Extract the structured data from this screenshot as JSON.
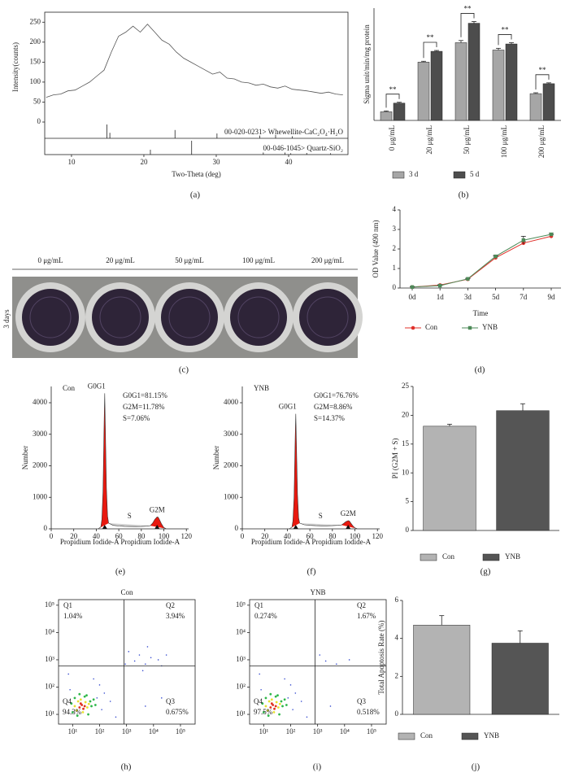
{
  "chart_data": [
    {
      "type": "line",
      "panel": "(a)",
      "ylabel": "Intensity(counts)",
      "xlabel": "Two-Theta (deg)",
      "frame": true,
      "color": "#555555",
      "x": [
        6.5,
        7.5,
        8.5,
        9.5,
        10.5,
        11.5,
        12.5,
        13.5,
        14.5,
        15.5,
        16.5,
        17.5,
        18.5,
        19.5,
        20.5,
        21.5,
        22.5,
        23.5,
        24.5,
        25.5,
        26.5,
        27.5,
        28.5,
        29.5,
        30.5,
        31.5,
        32.5,
        33.5,
        34.5,
        35.5,
        36.5,
        37.5,
        38.5,
        39.5,
        40.5,
        41.5,
        42.5,
        43.5,
        44.5,
        45.5,
        46.5,
        47.5
      ],
      "values": [
        62,
        68,
        70,
        78,
        80,
        90,
        100,
        115,
        130,
        175,
        215,
        225,
        240,
        225,
        245,
        225,
        205,
        195,
        175,
        160,
        150,
        140,
        130,
        120,
        125,
        110,
        108,
        100,
        98,
        92,
        95,
        88,
        85,
        90,
        82,
        80,
        78,
        75,
        72,
        75,
        70,
        68
      ],
      "xlim": [
        6.3,
        48.2
      ],
      "ylim": [
        0,
        275
      ],
      "xticks": [
        10,
        20,
        30,
        40
      ],
      "yticks": [
        0,
        50,
        100,
        150,
        200,
        250
      ],
      "references": [
        {
          "name": "00-020-0231> Whewellite-CaC₂O₄·H₂O",
          "x": [
            14.9,
            15.3,
            24.3,
            30.1,
            36.0,
            38.2,
            40.5
          ],
          "values": [
            100,
            40,
            60,
            35,
            20,
            25,
            15
          ]
        },
        {
          "name": "00-046-1045> Quartz-SiO₂",
          "x": [
            20.9,
            26.6,
            36.5,
            39.5,
            40.3,
            42.5,
            45.8
          ],
          "values": [
            35,
            100,
            15,
            15,
            10,
            12,
            10
          ]
        }
      ]
    },
    {
      "type": "bar",
      "panel": "(b)",
      "ylabel": "Sigma unit/min/mg protein",
      "ylim": [
        0,
        2.6
      ],
      "categories": [
        "0 μg/mL",
        "20 μg/mL",
        "50 μg/mL",
        "100 μg/mL",
        "200 μg/mL"
      ],
      "annotations": [
        "**",
        "**",
        "**",
        "**",
        "**"
      ],
      "series": [
        {
          "name": "3 d",
          "color": "#a6a6a6",
          "values": [
            0.2,
            1.35,
            1.8,
            1.63,
            0.62
          ],
          "errors": [
            0.02,
            0.02,
            0.05,
            0.04,
            0.02
          ]
        },
        {
          "name": "5 d",
          "color": "#4d4d4d",
          "values": [
            0.4,
            1.6,
            2.25,
            1.77,
            0.85
          ],
          "errors": [
            0.02,
            0.02,
            0.04,
            0.03,
            0.02
          ]
        }
      ]
    },
    {
      "type": "line",
      "panel": "(d)",
      "ylabel": "OD Value (490 nm)",
      "xlabel": "Time",
      "categories": [
        "0d",
        "1d",
        "3d",
        "5d",
        "7d",
        "9d"
      ],
      "ylim": [
        0,
        4
      ],
      "yticks": [
        0,
        1,
        2,
        3,
        4
      ],
      "series": [
        {
          "name": "Con",
          "color": "#e0302a",
          "marker": "circle",
          "values": [
            0.05,
            0.15,
            0.45,
            1.55,
            2.3,
            2.65
          ],
          "errors": [
            0.02,
            0.02,
            0.03,
            0.08,
            0.08,
            0.08
          ]
        },
        {
          "name": "YNB",
          "color": "#4d8a58",
          "marker": "square",
          "values": [
            0.05,
            0.12,
            0.47,
            1.62,
            2.45,
            2.75
          ],
          "errors": [
            0.02,
            0.02,
            0.03,
            0.05,
            0.2,
            0.05
          ]
        }
      ]
    },
    {
      "type": "area",
      "panel": "(e)",
      "title": "Con",
      "ylabel": "Number",
      "xlabel": "Propidium Iodide-A Propidium Iodide-A",
      "annotations": [
        "G0G1=81.15%",
        "G2M=11.78%",
        "S=7.06%"
      ],
      "xlim": [
        0,
        122
      ],
      "ylim": [
        0,
        4516
      ],
      "xticks": [
        0,
        20,
        40,
        60,
        80,
        100,
        120
      ],
      "yticks": [
        0,
        1000,
        2000,
        3000,
        4000
      ],
      "series": [
        {
          "name": "G0G1",
          "color": "#e8190f",
          "x": [
            42,
            44,
            45,
            46,
            47,
            47.5,
            48,
            49,
            50,
            51
          ],
          "values": [
            10,
            60,
            300,
            1200,
            3400,
            4300,
            3300,
            1300,
            400,
            180
          ]
        },
        {
          "name": "S",
          "color": "#d0d0d0",
          "x": [
            51,
            55,
            60,
            65,
            70,
            75,
            80,
            85,
            88
          ],
          "values": [
            180,
            110,
            90,
            80,
            75,
            72,
            75,
            85,
            100
          ]
        },
        {
          "name": "G2M",
          "color": "#e8190f",
          "x": [
            88,
            90,
            92,
            94,
            95,
            96,
            98,
            100,
            102
          ],
          "values": [
            100,
            180,
            300,
            380,
            370,
            300,
            150,
            40,
            5
          ]
        }
      ]
    },
    {
      "type": "area",
      "panel": "(f)",
      "title": "YNB",
      "ylabel": "Number",
      "xlabel": "Propidium Iodide-A Propidium Iodide-A",
      "annotations": [
        "G0G1=76.76%",
        "G2M=8.86%",
        "S=14.37%"
      ],
      "xlim": [
        0,
        122
      ],
      "ylim": [
        0,
        4516
      ],
      "xticks": [
        0,
        20,
        40,
        60,
        80,
        100,
        120
      ],
      "yticks": [
        0,
        1000,
        2000,
        3000,
        4000
      ],
      "series": [
        {
          "name": "G0G1",
          "color": "#e8190f",
          "x": [
            42,
            44,
            45,
            46,
            47,
            47.5,
            48,
            49,
            50,
            51
          ],
          "values": [
            10,
            50,
            250,
            1000,
            2900,
            3650,
            2800,
            1100,
            350,
            180
          ]
        },
        {
          "name": "S",
          "color": "#d0d0d0",
          "x": [
            51,
            55,
            60,
            65,
            70,
            75,
            80,
            85,
            88
          ],
          "values": [
            180,
            130,
            110,
            100,
            95,
            95,
            100,
            110,
            120
          ]
        },
        {
          "name": "G2M",
          "color": "#e8190f",
          "x": [
            88,
            90,
            92,
            94,
            95,
            96,
            98,
            100,
            102
          ],
          "values": [
            120,
            170,
            230,
            260,
            250,
            200,
            100,
            30,
            5
          ]
        }
      ]
    },
    {
      "type": "bar",
      "panel": "(g)",
      "ylabel": "PI (G2M + S)",
      "ylim": [
        0,
        25
      ],
      "yticks": [
        0,
        5,
        10,
        15,
        20,
        25
      ],
      "categories": [
        "Con",
        "YNB"
      ],
      "values": [
        18.1,
        20.8
      ],
      "errors": [
        0.35,
        1.2
      ],
      "colors": [
        "#b3b3b3",
        "#555555"
      ]
    },
    {
      "type": "scatter",
      "panel": "(h)",
      "title": "Con",
      "xlog": true,
      "ylog": true,
      "xlim": [
        3,
        350000
      ],
      "ylim": [
        4.4,
        160000
      ],
      "xticks": [
        {
          "value": 10,
          "label": "10¹"
        },
        {
          "value": 100,
          "label": "10²"
        },
        {
          "value": 1000,
          "label": "10³"
        },
        {
          "value": 10000,
          "label": "10⁴"
        },
        {
          "value": 100000,
          "label": "10⁵"
        }
      ],
      "yticks": [
        {
          "value": 10,
          "label": "10¹"
        },
        {
          "value": 100,
          "label": "10²"
        },
        {
          "value": 1000,
          "label": "10³"
        },
        {
          "value": 10000,
          "label": "10⁴"
        },
        {
          "value": 100000,
          "label": "10⁵"
        }
      ],
      "gates": {
        "x": 800,
        "y": 600
      },
      "quadrants": [
        "Q1",
        "Q2",
        "Q3",
        "Q4"
      ],
      "quadrant_values": [
        1.04,
        3.94,
        0.675,
        94.3
      ],
      "value_labels": [
        "1.04%",
        "3.94%",
        "0.675%",
        "94.3%"
      ],
      "points": [
        {
          "color": "#3a4fd0",
          "x": [
            80,
            120,
            8,
            150,
            100,
            2000,
            3000,
            5000,
            8000,
            1200,
            15000,
            20000,
            6000,
            900,
            4000,
            30000,
            250,
            400,
            60,
            7,
            5000,
            20000
          ],
          "y": [
            40,
            15,
            80,
            60,
            120,
            900,
            1500,
            700,
            1200,
            2000,
            1000,
            600,
            3000,
            700,
            400,
            1500,
            30,
            8,
            200,
            300,
            20,
            40
          ]
        },
        {
          "color": "#2fb84a",
          "x": [
            10,
            45,
            50,
            12,
            38,
            60,
            9,
            28,
            15,
            70,
            33,
            18
          ],
          "y": [
            12,
            30,
            20,
            40,
            10,
            35,
            25,
            45,
            9,
            22,
            50,
            55
          ]
        },
        {
          "color": "#e8e030",
          "x": [
            14,
            30,
            35,
            16,
            24,
            40,
            12,
            20
          ],
          "y": [
            14,
            28,
            18,
            30,
            12,
            24,
            20,
            35
          ]
        },
        {
          "color": "#e03020",
          "x": [
            18,
            22,
            25,
            20,
            28
          ],
          "y": [
            18,
            22,
            16,
            25,
            20
          ]
        }
      ]
    },
    {
      "type": "scatter",
      "panel": "(i)",
      "title": "YNB",
      "xlog": true,
      "ylog": true,
      "xlim": [
        3,
        350000
      ],
      "ylim": [
        4.4,
        160000
      ],
      "xticks": [
        {
          "value": 10,
          "label": "10¹"
        },
        {
          "value": 100,
          "label": "10²"
        },
        {
          "value": 1000,
          "label": "10³"
        },
        {
          "value": 10000,
          "label": "10⁴"
        },
        {
          "value": 100000,
          "label": "10⁵"
        }
      ],
      "yticks": [
        {
          "value": 10,
          "label": "10¹"
        },
        {
          "value": 100,
          "label": "10²"
        },
        {
          "value": 1000,
          "label": "10³"
        },
        {
          "value": 10000,
          "label": "10⁴"
        },
        {
          "value": 100000,
          "label": "10⁵"
        }
      ],
      "gates": {
        "x": 800,
        "y": 600
      },
      "quadrants": [
        "Q1",
        "Q2",
        "Q3",
        "Q4"
      ],
      "quadrant_values": [
        0.274,
        1.67,
        0.518,
        97.5
      ],
      "value_labels": [
        "0.274%",
        "1.67%",
        "0.518%",
        "97.5%"
      ],
      "points": [
        {
          "color": "#3a4fd0",
          "x": [
            80,
            120,
            8,
            150,
            100,
            2000,
            5000,
            1200,
            15000,
            250,
            400,
            60,
            7,
            3000
          ],
          "y": [
            40,
            15,
            80,
            60,
            120,
            900,
            700,
            1500,
            1000,
            30,
            8,
            200,
            300,
            20
          ]
        },
        {
          "color": "#2fb84a",
          "x": [
            10,
            45,
            50,
            12,
            38,
            60,
            9,
            28,
            15,
            70,
            33,
            18
          ],
          "y": [
            12,
            30,
            20,
            40,
            10,
            35,
            25,
            45,
            9,
            22,
            50,
            55
          ]
        },
        {
          "color": "#e8e030",
          "x": [
            14,
            30,
            35,
            16,
            24,
            40,
            12,
            20
          ],
          "y": [
            14,
            28,
            18,
            30,
            12,
            24,
            20,
            35
          ]
        },
        {
          "color": "#e03020",
          "x": [
            18,
            22,
            25,
            20,
            28
          ],
          "y": [
            18,
            22,
            16,
            25,
            20
          ]
        }
      ]
    },
    {
      "type": "bar",
      "panel": "(j)",
      "ylabel": "Total Apoptosis Rate (%)",
      "ylim": [
        0,
        6
      ],
      "yticks": [
        0,
        2,
        4,
        6
      ],
      "categories": [
        "Con",
        "YNB"
      ],
      "values": [
        4.7,
        3.75
      ],
      "errors": [
        0.5,
        0.65
      ],
      "colors": [
        "#b3b3b3",
        "#555555"
      ]
    }
  ],
  "photo": {
    "labels": [
      "0 μg/mL",
      "20 μg/mL",
      "50 μg/mL",
      "100 μg/mL",
      "200 μg/mL"
    ],
    "side_label": "3 days",
    "panel": "(c)"
  }
}
